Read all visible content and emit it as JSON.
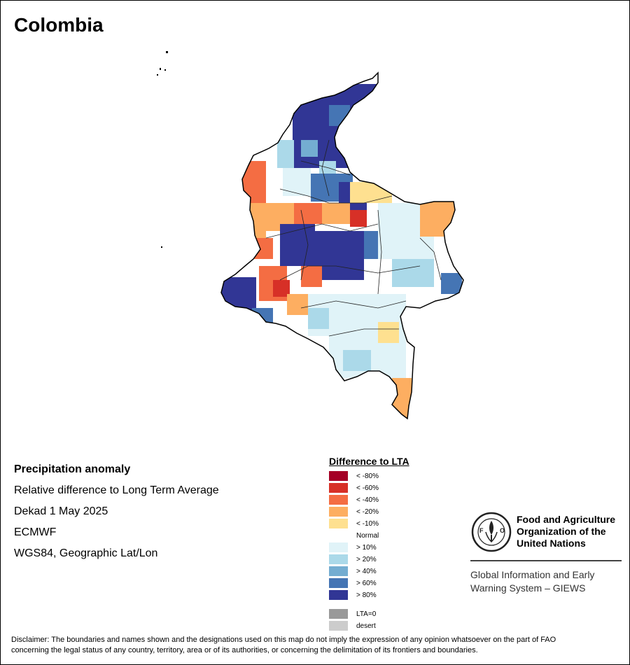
{
  "title": "Colombia",
  "info": {
    "heading": "Precipitation anomaly",
    "line1": "Relative difference to Long Term Average",
    "line2": "Dekad 1 May 2025",
    "line3": "ECMWF",
    "line4": "WGS84, Geographic Lat/Lon"
  },
  "legend": {
    "title": "Difference to LTA",
    "items": [
      {
        "label": "< -80%",
        "color": "#a50026"
      },
      {
        "label": "< -60%",
        "color": "#d73027"
      },
      {
        "label": "< -40%",
        "color": "#f46d43"
      },
      {
        "label": "< -20%",
        "color": "#fdae61"
      },
      {
        "label": "< -10%",
        "color": "#fee090"
      },
      {
        "label": "Normal",
        "color": "#ffffff"
      },
      {
        "label": "> 10%",
        "color": "#e0f3f8"
      },
      {
        "label": "> 20%",
        "color": "#abd9e9"
      },
      {
        "label": "> 40%",
        "color": "#74add1"
      },
      {
        "label": "> 60%",
        "color": "#4575b4"
      },
      {
        "label": "> 80%",
        "color": "#313695"
      },
      {
        "label": "LTA=0",
        "color": "#999999"
      },
      {
        "label": "desert",
        "color": "#cccccc"
      }
    ]
  },
  "org": {
    "line1": "Food and Agriculture",
    "line2": "Organization of the",
    "line3": "United Nations",
    "sub1": "Global Information and Early",
    "sub2": "Warning System – GIEWS",
    "logo_text": "FAO"
  },
  "disclaimer": {
    "line1": "Disclaimer: The boundaries and names shown and the designations used on this map do not imply the expression of any opinion whatsoever on the part of FAO",
    "line2": "concerning the legal status of any country, territory, area or of its authorities, or concerning the delimitation of its frontiers and boundaries."
  }
}
